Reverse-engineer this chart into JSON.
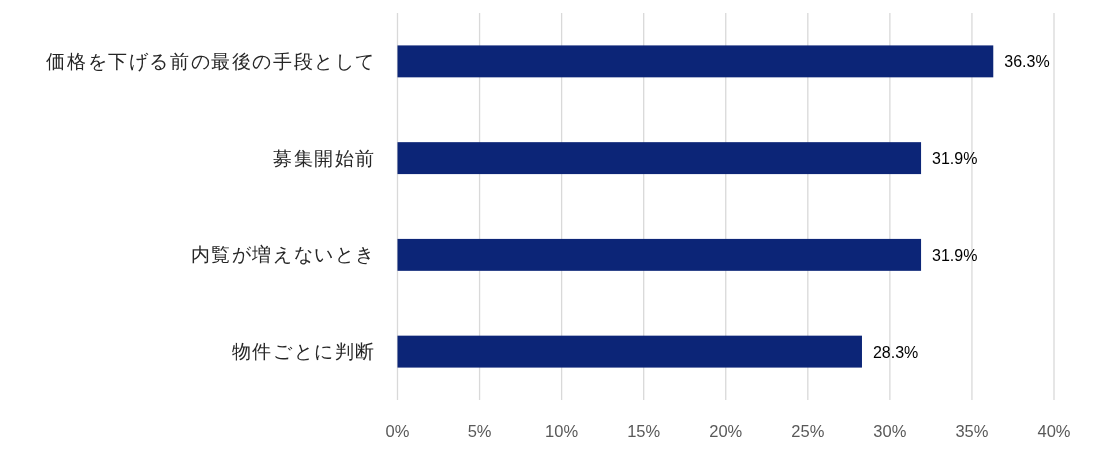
{
  "chart_data": {
    "type": "bar",
    "orientation": "horizontal",
    "categories": [
      "価格を下げる前の最後の手段として",
      "募集開始前",
      "内覧が増えないとき",
      "物件ごとに判断"
    ],
    "values": [
      36.3,
      31.9,
      31.9,
      28.3
    ],
    "value_labels": [
      "36.3%",
      "31.9%",
      "31.9%",
      "28.3%"
    ],
    "color": "#0c2577",
    "xlim": [
      0,
      40
    ],
    "xticks": [
      {
        "value": 0,
        "label": "0%"
      },
      {
        "value": 5,
        "label": "5%"
      },
      {
        "value": 10,
        "label": "10%"
      },
      {
        "value": 15,
        "label": "15%"
      },
      {
        "value": 20,
        "label": "20%"
      },
      {
        "value": 25,
        "label": "25%"
      },
      {
        "value": 30,
        "label": "30%"
      },
      {
        "value": 35,
        "label": "35%"
      },
      {
        "value": 40,
        "label": "40%"
      }
    ],
    "grid": "x"
  }
}
